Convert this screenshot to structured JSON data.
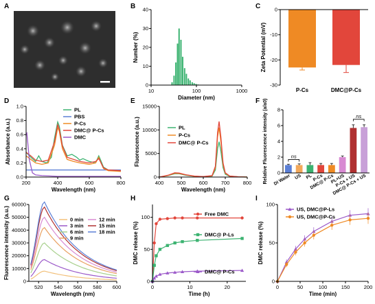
{
  "panels": {
    "A": "A",
    "B": "B",
    "C": "C",
    "D": "D",
    "E": "E",
    "F": "F",
    "G": "G",
    "H": "H",
    "I": "I"
  },
  "colors": {
    "green": "#3cb371",
    "orange": "#ef8a24",
    "red": "#e2463b",
    "purple": "#9b59c9",
    "blue": "#5b7fd6",
    "pink": "#d88ad2",
    "darkred": "#b03030"
  },
  "chart_data": [
    {
      "panel": "B",
      "type": "bar",
      "xlabel": "Diameter (nm)",
      "ylabel": "Number (%)",
      "xscale": "log",
      "xlim": [
        10,
        1000
      ],
      "ylim": [
        0,
        40
      ],
      "xticks": [
        "10",
        "100",
        "1000"
      ],
      "yticks": [
        "0",
        "10",
        "20",
        "30",
        "40"
      ],
      "x": [
        28,
        31,
        34,
        37,
        40,
        44,
        48,
        53,
        58,
        64,
        70,
        78,
        86,
        95,
        105
      ],
      "values": [
        1.5,
        5,
        12,
        22,
        30,
        24,
        15,
        9,
        6,
        3.5,
        2.5,
        1.5,
        1,
        0.6,
        0.3
      ]
    },
    {
      "panel": "C",
      "type": "bar",
      "ylabel": "Zeta Potential (mV)",
      "ylim": [
        -30,
        0
      ],
      "yticks": [
        "0",
        "-10",
        "-20",
        "-30"
      ],
      "categories": [
        "P-Cs",
        "DMC@P-Cs"
      ],
      "values": [
        -23,
        -22
      ],
      "errors": [
        1,
        3
      ]
    },
    {
      "panel": "D",
      "type": "line",
      "xlabel": "Wavelength (nm)",
      "ylabel": "Absorbance (a.u.)",
      "xlim": [
        200,
        800
      ],
      "ylim": [
        0,
        1
      ],
      "xticks": [
        "200",
        "400",
        "600",
        "800"
      ],
      "yticks": [
        "0.0",
        "0.2",
        "0.4",
        "0.6",
        "0.8",
        "1.0"
      ],
      "series": [
        {
          "name": "PL",
          "color": "#3cb371",
          "x": [
            200,
            230,
            260,
            280,
            300,
            330,
            360,
            380,
            400,
            410,
            430,
            460,
            490,
            520,
            540,
            560,
            600,
            640,
            660,
            670,
            690,
            720,
            800
          ],
          "y": [
            0.35,
            0.28,
            0.22,
            0.3,
            0.22,
            0.2,
            0.28,
            0.55,
            0.78,
            0.72,
            0.45,
            0.3,
            0.32,
            0.28,
            0.24,
            0.26,
            0.22,
            0.2,
            0.3,
            0.25,
            0.14,
            0.1,
            0.1
          ]
        },
        {
          "name": "PBS",
          "color": "#5b7fd6",
          "x": [
            200,
            300,
            400,
            500,
            600,
            700,
            800
          ],
          "y": [
            0.1,
            0.1,
            0.1,
            0.1,
            0.1,
            0.1,
            0.1
          ]
        },
        {
          "name": "P-Cs",
          "color": "#ef8a24",
          "x": [
            200,
            230,
            260,
            300,
            340,
            380,
            400,
            410,
            430,
            460,
            500,
            540,
            600,
            640,
            660,
            670,
            690,
            720,
            800
          ],
          "y": [
            0.3,
            0.25,
            0.2,
            0.18,
            0.2,
            0.45,
            0.7,
            0.65,
            0.4,
            0.25,
            0.22,
            0.2,
            0.18,
            0.2,
            0.28,
            0.22,
            0.12,
            0.09,
            0.08
          ]
        },
        {
          "name": "DMC@ P-Cs",
          "color": "#e2463b",
          "x": [
            200,
            230,
            260,
            300,
            340,
            380,
            400,
            410,
            430,
            460,
            500,
            540,
            600,
            640,
            660,
            670,
            690,
            720,
            800
          ],
          "y": [
            0.35,
            0.3,
            0.24,
            0.22,
            0.24,
            0.5,
            0.74,
            0.68,
            0.44,
            0.28,
            0.25,
            0.22,
            0.2,
            0.22,
            0.26,
            0.22,
            0.13,
            0.1,
            0.09
          ]
        },
        {
          "name": "DMC",
          "color": "#9b59c9",
          "x": [
            200,
            205,
            210,
            220,
            240,
            260,
            300,
            400,
            500,
            600,
            700,
            800
          ],
          "y": [
            0.6,
            0.62,
            0.5,
            0.25,
            0.06,
            0.03,
            0.02,
            0.01,
            0.01,
            0.01,
            0.01,
            0.01
          ]
        }
      ]
    },
    {
      "panel": "E",
      "type": "line",
      "xlabel": "Wavelength (nm)",
      "ylabel": "Fluorescence (a.u.)",
      "xlim": [
        400,
        800
      ],
      "ylim": [
        0,
        15000
      ],
      "xticks": [
        "400",
        "500",
        "600",
        "700",
        "800"
      ],
      "yticks": [
        "0",
        "5000",
        "10000",
        "15000"
      ],
      "series": [
        {
          "name": "PL",
          "color": "#3cb371",
          "x": [
            400,
            440,
            470,
            490,
            520,
            560,
            600,
            640,
            655,
            665,
            672,
            680,
            690,
            700,
            720,
            760,
            800
          ],
          "y": [
            0,
            300,
            700,
            700,
            400,
            150,
            80,
            200,
            1500,
            6000,
            7500,
            5500,
            2000,
            600,
            150,
            30,
            0
          ]
        },
        {
          "name": "P-Cs",
          "color": "#ef8a24",
          "x": [
            400,
            440,
            470,
            490,
            520,
            560,
            600,
            640,
            655,
            665,
            672,
            680,
            690,
            700,
            720,
            760,
            800
          ],
          "y": [
            0,
            350,
            800,
            750,
            450,
            170,
            90,
            250,
            2000,
            8500,
            10500,
            7500,
            2600,
            800,
            200,
            40,
            0
          ]
        },
        {
          "name": "DMC@ P-Cs",
          "color": "#e2463b",
          "x": [
            400,
            440,
            470,
            490,
            520,
            560,
            600,
            640,
            655,
            665,
            672,
            680,
            690,
            700,
            720,
            760,
            800
          ],
          "y": [
            0,
            400,
            900,
            850,
            500,
            200,
            100,
            300,
            2300,
            9500,
            11800,
            8500,
            3000,
            900,
            220,
            50,
            0
          ]
        }
      ]
    },
    {
      "panel": "F",
      "type": "bar",
      "ylabel": "Relative Fluorescence intensity (a/a0)",
      "ylim": [
        0,
        8
      ],
      "yticks": [
        "0",
        "2",
        "4",
        "6",
        "8"
      ],
      "categories": [
        "DI Water",
        "US",
        "PL",
        "P-Cs",
        "DMC@ P-Cs",
        "PL+US",
        "P-Cs + US",
        "DMC@ P-Cs + US"
      ],
      "values": [
        1.0,
        1.0,
        1.0,
        1.0,
        1.0,
        2.0,
        5.7,
        5.8
      ],
      "errors": [
        0.1,
        0.15,
        0.3,
        0.2,
        0.2,
        0.15,
        0.4,
        0.3
      ],
      "bar_colors": [
        "#5b7fd6",
        "#f2a85a",
        "#3cb371",
        "#e2463b",
        "#ef8a24",
        "#d88ad2",
        "#b03030",
        "#c8a0d8"
      ],
      "annotations": [
        "ns",
        "ns"
      ]
    },
    {
      "panel": "G",
      "type": "line",
      "xlabel": "Wavelength (nm)",
      "ylabel": "Fluorescence intensity (a.u.)",
      "xlim": [
        510,
        600
      ],
      "ylim": [
        0,
        60000
      ],
      "xticks": [
        "520",
        "540",
        "560",
        "580",
        "600"
      ],
      "yticks": [
        "0",
        "10000",
        "20000",
        "30000",
        "40000",
        "50000",
        "60000"
      ],
      "series": [
        {
          "name": "0 min",
          "color": "#f2c07a",
          "peak": 8000
        },
        {
          "name": "3 min",
          "color": "#9b59c9",
          "peak": 17000
        },
        {
          "name": "6 min",
          "color": "#a8d08d",
          "peak": 30000
        },
        {
          "name": "9 min",
          "color": "#e9a060",
          "peak": 42000
        },
        {
          "name": "12 min",
          "color": "#d88ad2",
          "peak": 50000
        },
        {
          "name": "15 min",
          "color": "#b03030",
          "peak": 58000
        },
        {
          "name": "18 min",
          "color": "#5b7fd6",
          "peak": 62000
        }
      ]
    },
    {
      "panel": "H",
      "type": "line",
      "xlabel": "Time (h)",
      "ylabel": "DMC release (%)",
      "xlim": [
        0,
        25
      ],
      "ylim": [
        0,
        120
      ],
      "xticks": [
        "0",
        "10",
        "20"
      ],
      "yticks": [
        "0",
        "50",
        "100"
      ],
      "series": [
        {
          "name": "Free DMC",
          "color": "#e2463b",
          "marker": "circle",
          "x": [
            0,
            0.5,
            1,
            2,
            4,
            6,
            8,
            12,
            24
          ],
          "y": [
            0,
            60,
            90,
            97,
            98,
            99,
            99,
            99,
            99
          ]
        },
        {
          "name": "DMC@ P-Ls",
          "color": "#3cb371",
          "marker": "square",
          "x": [
            0,
            0.5,
            1,
            2,
            4,
            6,
            8,
            12,
            24
          ],
          "y": [
            0,
            25,
            40,
            50,
            56,
            60,
            62,
            64,
            67
          ]
        },
        {
          "name": "DMC@ P-Cs",
          "color": "#9b59c9",
          "marker": "triangle",
          "x": [
            0,
            0.5,
            1,
            2,
            4,
            6,
            8,
            12,
            24
          ],
          "y": [
            0,
            5,
            8,
            11,
            13,
            14,
            15,
            16,
            17
          ]
        }
      ]
    },
    {
      "panel": "I",
      "type": "line",
      "xlabel": "Time (min)",
      "ylabel": "DMC release (%)",
      "xlim": [
        0,
        200
      ],
      "ylim": [
        0,
        100
      ],
      "xticks": [
        "0",
        "50",
        "100",
        "150",
        "200"
      ],
      "yticks": [
        "0",
        "50",
        "100"
      ],
      "series": [
        {
          "name": "US, DMC@P-Ls",
          "color": "#9b59c9",
          "marker": "triangle",
          "x": [
            0,
            20,
            40,
            60,
            80,
            120,
            160,
            200
          ],
          "y": [
            0,
            25,
            42,
            55,
            65,
            78,
            86,
            88
          ]
        },
        {
          "name": "US, DMC@P-Cs",
          "color": "#ef8a24",
          "marker": "circle",
          "x": [
            0,
            20,
            40,
            60,
            80,
            120,
            160,
            200
          ],
          "y": [
            0,
            22,
            38,
            50,
            60,
            73,
            80,
            82
          ]
        }
      ]
    }
  ]
}
